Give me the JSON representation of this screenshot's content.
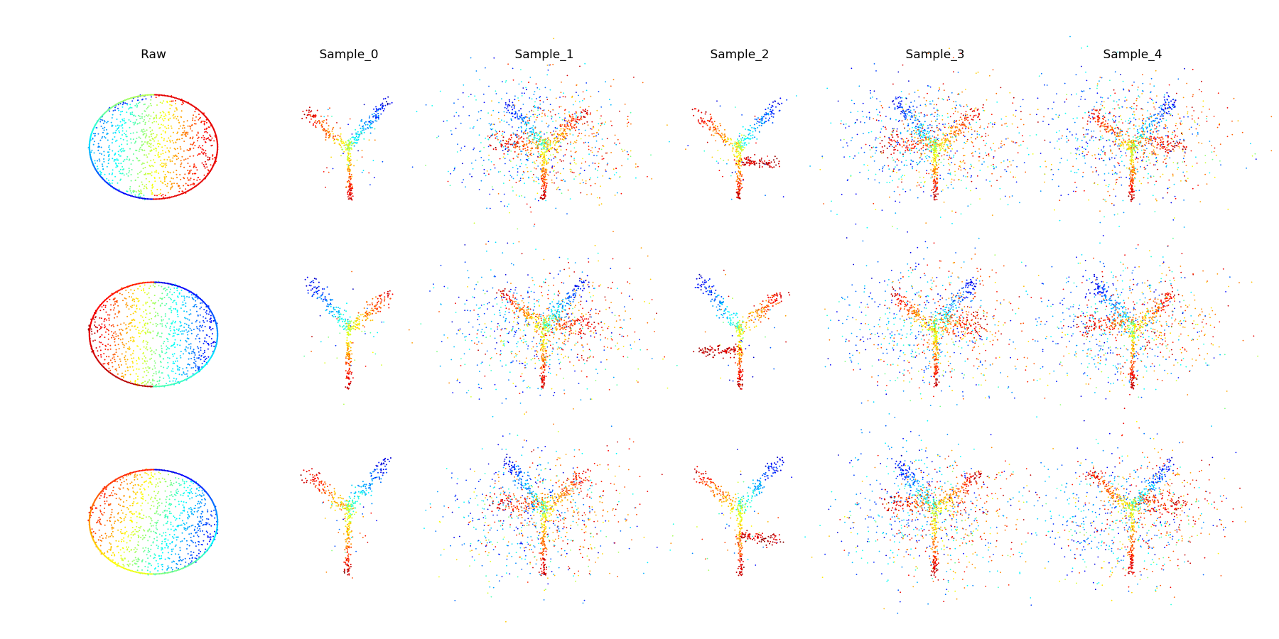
{
  "figure": {
    "columns": [
      {
        "title": "Raw",
        "kind": "sphere"
      },
      {
        "title": "Sample_0",
        "kind": "plant"
      },
      {
        "title": "Sample_1",
        "kind": "plant"
      },
      {
        "title": "Sample_2",
        "kind": "plant"
      },
      {
        "title": "Sample_3",
        "kind": "plant"
      },
      {
        "title": "Sample_4",
        "kind": "plant"
      }
    ],
    "rows": 3,
    "colormap": "jet",
    "colormap_stops": [
      "#00007f",
      "#0000ff",
      "#007fff",
      "#00ffff",
      "#7fff7f",
      "#ffff00",
      "#ff7f00",
      "#ff0000",
      "#7f0000"
    ],
    "axes_visible": false
  }
}
